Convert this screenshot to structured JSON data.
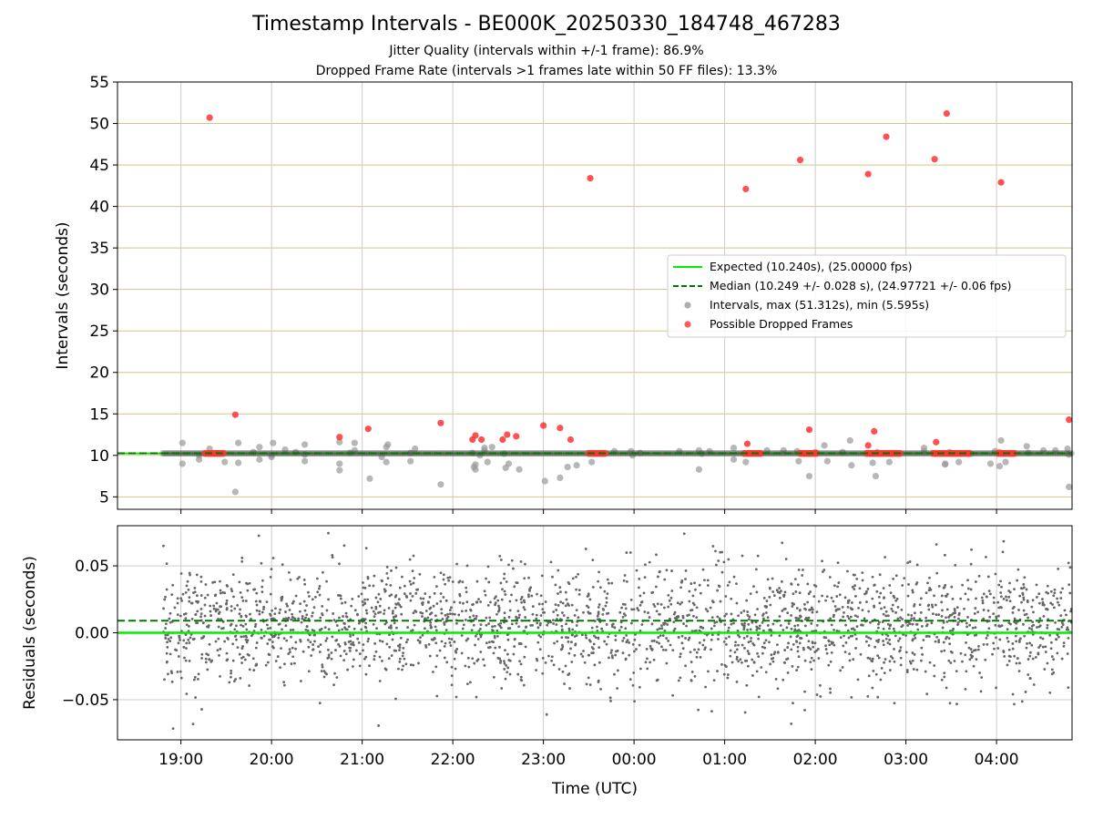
{
  "title": "Timestamp Intervals - BE000K_20250330_184748_467283",
  "subtitle_1": "Jitter Quality (intervals within +/-1 frame): 86.9%",
  "subtitle_2": "Dropped Frame Rate (intervals >1 frames late within 50 FF files): 13.3%",
  "colors": {
    "expected": "#00ee00",
    "median": "#007700",
    "intervals": "#999999",
    "dropped": "#ff3333",
    "residuals": "#666666",
    "top_grid_h": "#d4c48a",
    "grid": "#cccccc"
  },
  "chart_data": [
    {
      "type": "scatter",
      "xlabel": "",
      "ylabel": "Intervals (seconds)",
      "xlim": [
        "18:18",
        "04:50"
      ],
      "ylim": [
        3.5,
        55
      ],
      "y_ticks": [
        5,
        10,
        15,
        20,
        25,
        30,
        35,
        40,
        45,
        50,
        55
      ],
      "x_ticks": [
        "19:00",
        "20:00",
        "21:00",
        "22:00",
        "23:00",
        "00:00",
        "01:00",
        "02:00",
        "03:00",
        "04:00"
      ],
      "grid": true,
      "legend_position": "center-right",
      "lines": [
        {
          "name": "Expected (10.240s), (25.00000 fps)",
          "y": 10.24,
          "style": "solid"
        },
        {
          "name": "Median (10.249 +/- 0.028 s), (24.97721 +/- 0.06 fps)",
          "y": 10.249,
          "style": "dashed"
        }
      ],
      "series": [
        {
          "name": "Intervals, max (51.312s), min (5.595s)",
          "points": [
            [
              "19:01",
              11.5
            ],
            [
              "19:01",
              9.0
            ],
            [
              "19:12",
              10.0
            ],
            [
              "19:12",
              9.5
            ],
            [
              "19:19",
              10.8
            ],
            [
              "19:29",
              9.2
            ],
            [
              "19:36",
              5.6
            ],
            [
              "19:38",
              11.5
            ],
            [
              "19:38",
              9.1
            ],
            [
              "19:48",
              10.4
            ],
            [
              "19:52",
              11.0
            ],
            [
              "19:52",
              9.5
            ],
            [
              "20:00",
              10.0
            ],
            [
              "20:00",
              9.8
            ],
            [
              "20:01",
              11.5
            ],
            [
              "20:09",
              10.7
            ],
            [
              "20:16",
              10.4
            ],
            [
              "20:22",
              10.1
            ],
            [
              "20:22",
              9.3
            ],
            [
              "20:22",
              11.3
            ],
            [
              "20:45",
              9.0
            ],
            [
              "20:45",
              8.2
            ],
            [
              "20:45",
              11.6
            ],
            [
              "20:52",
              10.3
            ],
            [
              "20:55",
              11.5
            ],
            [
              "20:55",
              10.6
            ],
            [
              "21:05",
              7.2
            ],
            [
              "21:13",
              9.8
            ],
            [
              "21:16",
              11.0
            ],
            [
              "21:16",
              9.2
            ],
            [
              "21:17",
              11.3
            ],
            [
              "21:35",
              10.8
            ],
            [
              "21:32",
              10.3
            ],
            [
              "21:32",
              9.3
            ],
            [
              "21:52",
              6.5
            ],
            [
              "22:13",
              10.3
            ],
            [
              "22:14",
              8.6
            ],
            [
              "22:15",
              8.3
            ],
            [
              "22:15",
              8.9
            ],
            [
              "22:18",
              10.0
            ],
            [
              "22:21",
              10.6
            ],
            [
              "22:21",
              10.9
            ],
            [
              "22:23",
              9.2
            ],
            [
              "22:26",
              11.0
            ],
            [
              "22:34",
              10.2
            ],
            [
              "22:35",
              8.5
            ],
            [
              "22:37",
              9.0
            ],
            [
              "22:44",
              8.3
            ],
            [
              "23:01",
              6.9
            ],
            [
              "23:11",
              7.3
            ],
            [
              "23:16",
              8.6
            ],
            [
              "23:22",
              8.8
            ],
            [
              "23:32",
              9.2
            ],
            [
              "23:47",
              10.5
            ],
            [
              "23:58",
              10.5
            ],
            [
              "23:59",
              10.0
            ],
            [
              "00:04",
              10.3
            ],
            [
              "00:30",
              10.5
            ],
            [
              "00:50",
              10.5
            ],
            [
              "00:43",
              10.6
            ],
            [
              "00:43",
              8.3
            ],
            [
              "00:45",
              10.2
            ],
            [
              "01:06",
              9.5
            ],
            [
              "01:06",
              10.9
            ],
            [
              "01:14",
              9.2
            ],
            [
              "01:28",
              10.6
            ],
            [
              "01:39",
              10.6
            ],
            [
              "01:48",
              10.5
            ],
            [
              "01:49",
              9.3
            ],
            [
              "01:56",
              7.5
            ],
            [
              "02:00",
              10.4
            ],
            [
              "02:06",
              11.2
            ],
            [
              "02:08",
              9.3
            ],
            [
              "02:18",
              10.4
            ],
            [
              "02:24",
              8.8
            ],
            [
              "02:23",
              11.8
            ],
            [
              "02:38",
              9.1
            ],
            [
              "02:41",
              10.4
            ],
            [
              "02:40",
              7.5
            ],
            [
              "02:49",
              9.2
            ],
            [
              "03:12",
              10.5
            ],
            [
              "03:12",
              10.9
            ],
            [
              "03:19",
              10.2
            ],
            [
              "03:26",
              9.0
            ],
            [
              "03:26",
              8.9
            ],
            [
              "03:29",
              10.4
            ],
            [
              "03:35",
              9.2
            ],
            [
              "03:43",
              10.2
            ],
            [
              "03:56",
              9.0
            ],
            [
              "03:59",
              10.5
            ],
            [
              "04:02",
              8.7
            ],
            [
              "04:03",
              11.8
            ],
            [
              "04:06",
              9.2
            ],
            [
              "04:02",
              10.4
            ],
            [
              "04:21",
              10.3
            ],
            [
              "04:20",
              11.1
            ],
            [
              "04:31",
              10.6
            ],
            [
              "04:39",
              10.6
            ],
            [
              "04:47",
              10.8
            ],
            [
              "04:48",
              6.2
            ],
            [
              "04:48",
              10.1
            ]
          ]
        },
        {
          "name": "Possible Dropped Frames",
          "points": [
            [
              "19:19",
              50.7
            ],
            [
              "19:36",
              14.9
            ],
            [
              "20:45",
              12.2
            ],
            [
              "21:04",
              13.2
            ],
            [
              "21:52",
              13.9
            ],
            [
              "22:13",
              11.9
            ],
            [
              "22:15",
              12.4
            ],
            [
              "22:19",
              11.9
            ],
            [
              "22:33",
              11.9
            ],
            [
              "22:36",
              12.5
            ],
            [
              "22:42",
              12.3
            ],
            [
              "23:00",
              13.6
            ],
            [
              "23:11",
              13.3
            ],
            [
              "23:18",
              11.9
            ],
            [
              "23:31",
              43.4
            ],
            [
              "01:14",
              42.1
            ],
            [
              "01:15",
              11.4
            ],
            [
              "01:50",
              45.6
            ],
            [
              "01:56",
              13.1
            ],
            [
              "02:35",
              43.9
            ],
            [
              "02:35",
              11.2
            ],
            [
              "02:39",
              12.9
            ],
            [
              "02:47",
              48.4
            ],
            [
              "03:19",
              45.7
            ],
            [
              "03:20",
              11.6
            ],
            [
              "03:27",
              51.2
            ],
            [
              "04:03",
              42.9
            ],
            [
              "04:48",
              14.3
            ]
          ],
          "dense_clusters_at_10_24": [
            [
              "19:16",
              "19:29"
            ],
            [
              "23:30",
              "23:42"
            ],
            [
              "01:13",
              "01:24"
            ],
            [
              "01:50",
              "02:01"
            ],
            [
              "02:34",
              "02:50"
            ],
            [
              "02:50",
              "02:57"
            ],
            [
              "03:18",
              "03:43"
            ],
            [
              "04:01",
              "04:12"
            ]
          ]
        }
      ]
    },
    {
      "type": "scatter",
      "xlabel": "Time (UTC)",
      "ylabel": "Residuals (seconds)",
      "xlim": [
        "18:18",
        "04:50"
      ],
      "ylim": [
        -0.08,
        0.08
      ],
      "y_ticks": [
        0.05,
        0.0,
        -0.05
      ],
      "y_tick_labels": [
        "0.05",
        "0.00",
        "−0.05"
      ],
      "x_ticks": [
        "19:00",
        "20:00",
        "21:00",
        "22:00",
        "23:00",
        "00:00",
        "01:00",
        "02:00",
        "03:00",
        "04:00"
      ],
      "grid": true,
      "lines": [
        {
          "name": "Expected",
          "y": 0.0,
          "style": "solid"
        },
        {
          "name": "Median",
          "y": 0.009,
          "style": "dashed"
        }
      ],
      "residual_points_description_approx": {
        "count": 2500,
        "x_range": [
          "18:48",
          "04:50"
        ],
        "center": 0.005,
        "spread_sd": 0.022,
        "y_range": [
          -0.08,
          0.08
        ]
      }
    }
  ]
}
